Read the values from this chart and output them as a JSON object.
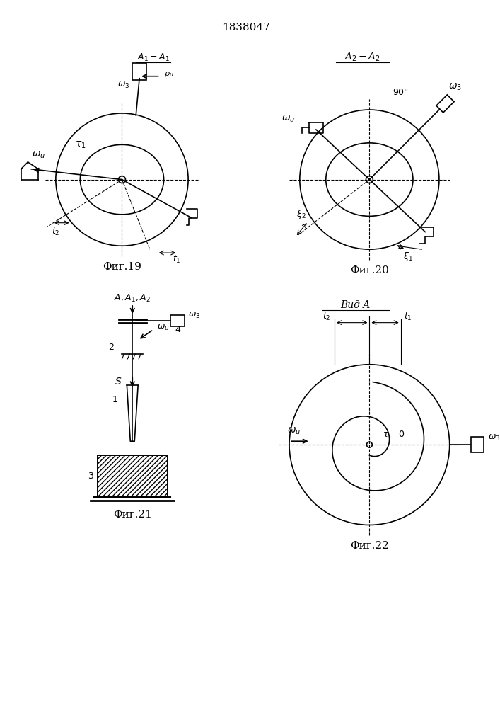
{
  "patent_number": "1838047",
  "bg_color": "#ffffff",
  "line_color": "#000000",
  "fig19_label": "Фиг.19",
  "fig20_label": "Фиг.20",
  "fig21_label": "Фиг.21",
  "fig22_label": "Фиг.22",
  "fig19_title": "A₁-A₁",
  "fig20_title": "A₂-A₂",
  "fig22_title": "Вид A"
}
